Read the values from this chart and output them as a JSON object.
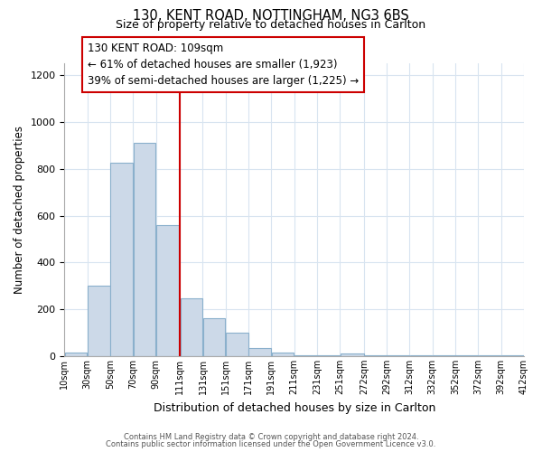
{
  "title1": "130, KENT ROAD, NOTTINGHAM, NG3 6BS",
  "title2": "Size of property relative to detached houses in Carlton",
  "xlabel": "Distribution of detached houses by size in Carlton",
  "ylabel": "Number of detached properties",
  "bar_left_edges": [
    10,
    30,
    50,
    70,
    90,
    111,
    131,
    151,
    171,
    191,
    211,
    231,
    251,
    272,
    292,
    312,
    332,
    352,
    372,
    392
  ],
  "bar_widths": [
    20,
    20,
    20,
    20,
    20,
    20,
    20,
    20,
    20,
    20,
    20,
    20,
    21,
    20,
    20,
    20,
    20,
    20,
    20,
    20
  ],
  "bar_heights": [
    15,
    300,
    825,
    910,
    560,
    245,
    160,
    100,
    35,
    15,
    5,
    5,
    10,
    5,
    5,
    5,
    5,
    5,
    5,
    5
  ],
  "bar_color": "#ccd9e8",
  "bar_edgecolor": "#8ab0cc",
  "property_line_x": 111,
  "property_line_color": "#cc0000",
  "annotation_line1": "130 KENT ROAD: 109sqm",
  "annotation_line2": "← 61% of detached houses are smaller (1,923)",
  "annotation_line3": "39% of semi-detached houses are larger (1,225) →",
  "annotation_box_edgecolor": "#cc0000",
  "annotation_box_facecolor": "#ffffff",
  "xlim": [
    10,
    412
  ],
  "ylim": [
    0,
    1250
  ],
  "yticks": [
    0,
    200,
    400,
    600,
    800,
    1000,
    1200
  ],
  "xtick_labels": [
    "10sqm",
    "30sqm",
    "50sqm",
    "70sqm",
    "90sqm",
    "111sqm",
    "131sqm",
    "151sqm",
    "171sqm",
    "191sqm",
    "211sqm",
    "231sqm",
    "251sqm",
    "272sqm",
    "292sqm",
    "312sqm",
    "332sqm",
    "352sqm",
    "372sqm",
    "392sqm",
    "412sqm"
  ],
  "xtick_positions": [
    10,
    30,
    50,
    70,
    90,
    111,
    131,
    151,
    171,
    191,
    211,
    231,
    251,
    272,
    292,
    312,
    332,
    352,
    372,
    392,
    412
  ],
  "footer1": "Contains HM Land Registry data © Crown copyright and database right 2024.",
  "footer2": "Contains public sector information licensed under the Open Government Licence v3.0.",
  "grid_color": "#d8e4f0",
  "background_color": "#ffffff"
}
